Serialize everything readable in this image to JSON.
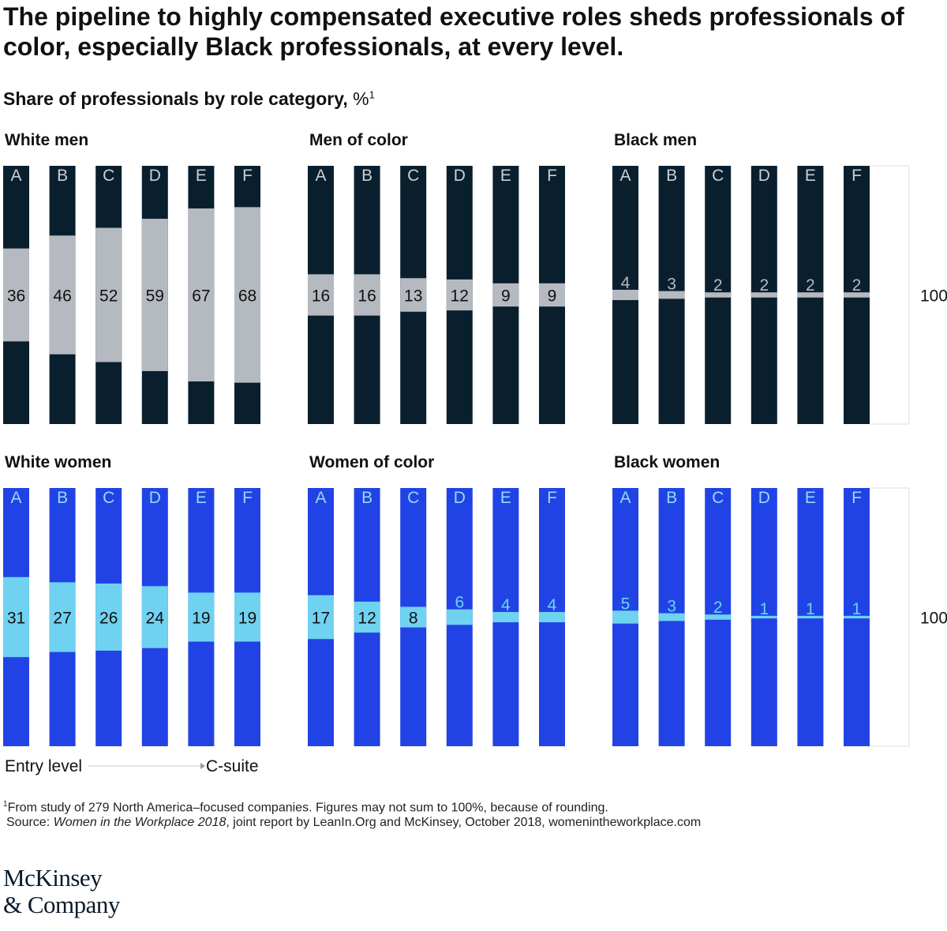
{
  "title": "The pipeline to highly compensated executive roles sheds professionals of color, especially Black professionals, at every level.",
  "subtitle": "Share of professionals by role category,",
  "subtitle_unit": "%",
  "subtitle_note": "1",
  "colors": {
    "men_bar": "#0a1f2e",
    "men_highlight": "#b5b9c0",
    "women_bar": "#2143e6",
    "women_highlight": "#6fd2f0",
    "men_letter": "#c9d0d6",
    "women_letter": "#8fdcf7",
    "frame": "#dddddd"
  },
  "chart_data": [
    {
      "type": "bar",
      "title": "White men",
      "group": "men",
      "categories": [
        "A",
        "B",
        "C",
        "D",
        "E",
        "F"
      ],
      "values": [
        36,
        46,
        52,
        59,
        67,
        68
      ],
      "ylim": [
        0,
        100
      ]
    },
    {
      "type": "bar",
      "title": "Men of color",
      "group": "men",
      "categories": [
        "A",
        "B",
        "C",
        "D",
        "E",
        "F"
      ],
      "values": [
        16,
        16,
        13,
        12,
        9,
        9
      ],
      "ylim": [
        0,
        100
      ]
    },
    {
      "type": "bar",
      "title": "Black men",
      "group": "men",
      "categories": [
        "A",
        "B",
        "C",
        "D",
        "E",
        "F"
      ],
      "values": [
        4,
        3,
        2,
        2,
        2,
        2
      ],
      "ylim": [
        0,
        100
      ],
      "scale_label": "100%"
    },
    {
      "type": "bar",
      "title": "White women",
      "group": "women",
      "categories": [
        "A",
        "B",
        "C",
        "D",
        "E",
        "F"
      ],
      "values": [
        31,
        27,
        26,
        24,
        19,
        19
      ],
      "ylim": [
        0,
        100
      ]
    },
    {
      "type": "bar",
      "title": "Women of color",
      "group": "women",
      "categories": [
        "A",
        "B",
        "C",
        "D",
        "E",
        "F"
      ],
      "values": [
        17,
        12,
        8,
        6,
        4,
        4
      ],
      "ylim": [
        0,
        100
      ]
    },
    {
      "type": "bar",
      "title": "Black women",
      "group": "women",
      "categories": [
        "A",
        "B",
        "C",
        "D",
        "E",
        "F"
      ],
      "values": [
        5,
        3,
        2,
        1,
        1,
        1
      ],
      "ylim": [
        0,
        100
      ],
      "scale_label": "100%"
    }
  ],
  "axis": {
    "start_label": "Entry level",
    "end_label": "C-suite"
  },
  "footnote": {
    "marker": "1",
    "text": "From study of 279 North America–focused companies. Figures may not sum to 100%, because of rounding.",
    "source_prefix": "Source: ",
    "source_title": "Women in the Workplace 2018",
    "source_rest": ", joint report by LeanIn.Org and McKinsey, October 2018, womenintheworkplace.com"
  },
  "logo": {
    "line1": "McKinsey",
    "line2": "& Company"
  }
}
